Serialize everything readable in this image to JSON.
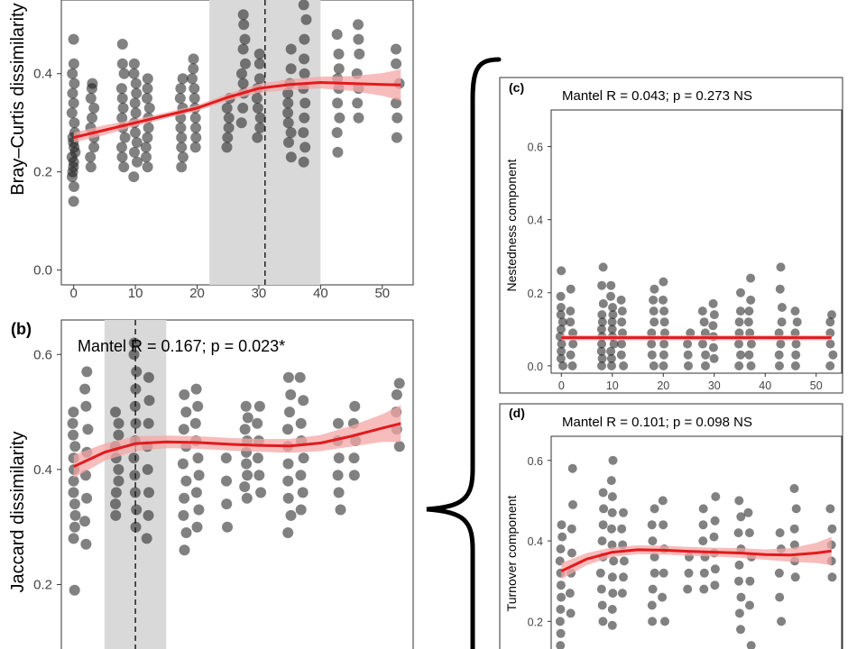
{
  "chart_data": [
    {
      "panel": "a",
      "type": "scatter",
      "annotation": "",
      "ylabel": "Bray–Curtis dissimilarity",
      "xlabel": "",
      "xlim": [
        -2,
        55
      ],
      "ylim": [
        -0.03,
        0.55
      ],
      "xticks": [
        0,
        10,
        20,
        30,
        40,
        50
      ],
      "yticks": [
        0.0,
        0.2,
        0.4
      ],
      "ytick_labels": [
        "0.0",
        "0.2",
        "0.4"
      ],
      "shaded_band": [
        22,
        40
      ],
      "dashed_line_x": 31,
      "grid": false,
      "point_color": "#222222",
      "smooth_color": "#e31a1c",
      "ribbon_color": "#f4a6a6",
      "band_color": "#d9d9d9",
      "smooth": {
        "x": [
          0,
          5,
          10,
          15,
          20,
          25,
          30,
          35,
          40,
          45,
          50,
          53
        ],
        "y": [
          0.27,
          0.285,
          0.3,
          0.315,
          0.33,
          0.352,
          0.37,
          0.378,
          0.382,
          0.38,
          0.378,
          0.377
        ],
        "lower": [
          0.26,
          0.275,
          0.293,
          0.309,
          0.324,
          0.345,
          0.361,
          0.367,
          0.37,
          0.365,
          0.355,
          0.345
        ],
        "upper": [
          0.28,
          0.295,
          0.307,
          0.321,
          0.336,
          0.359,
          0.379,
          0.389,
          0.394,
          0.395,
          0.401,
          0.409
        ]
      },
      "clusters": [
        {
          "x": 0,
          "y": [
            0.14,
            0.17,
            0.19,
            0.2,
            0.21,
            0.22,
            0.23,
            0.24,
            0.25,
            0.26,
            0.27,
            0.28,
            0.3,
            0.32,
            0.34,
            0.36,
            0.38,
            0.4,
            0.42,
            0.47
          ]
        },
        {
          "x": 3,
          "y": [
            0.21,
            0.23,
            0.25,
            0.27,
            0.29,
            0.31,
            0.33,
            0.35,
            0.37,
            0.38
          ]
        },
        {
          "x": 8,
          "y": [
            0.21,
            0.23,
            0.25,
            0.27,
            0.29,
            0.31,
            0.33,
            0.35,
            0.37,
            0.4,
            0.42,
            0.46
          ]
        },
        {
          "x": 10,
          "y": [
            0.19,
            0.22,
            0.24,
            0.26,
            0.28,
            0.3,
            0.32,
            0.34,
            0.36,
            0.38,
            0.4,
            0.42
          ]
        },
        {
          "x": 12,
          "y": [
            0.21,
            0.23,
            0.25,
            0.27,
            0.29,
            0.31,
            0.33,
            0.35,
            0.37,
            0.39
          ]
        },
        {
          "x": 17.5,
          "y": [
            0.21,
            0.23,
            0.25,
            0.27,
            0.29,
            0.31,
            0.33,
            0.35,
            0.37,
            0.39
          ]
        },
        {
          "x": 19.5,
          "y": [
            0.25,
            0.27,
            0.29,
            0.31,
            0.33,
            0.35,
            0.37,
            0.39,
            0.41,
            0.43
          ]
        },
        {
          "x": 25,
          "y": [
            0.25,
            0.27,
            0.29,
            0.31,
            0.33,
            0.35
          ]
        },
        {
          "x": 27.5,
          "y": [
            0.3,
            0.33,
            0.36,
            0.38,
            0.4,
            0.42,
            0.45,
            0.47,
            0.5,
            0.52
          ]
        },
        {
          "x": 30,
          "y": [
            0.27,
            0.29,
            0.31,
            0.33,
            0.35,
            0.37,
            0.39,
            0.42,
            0.44
          ]
        },
        {
          "x": 35,
          "y": [
            0.23,
            0.26,
            0.28,
            0.3,
            0.32,
            0.34,
            0.36,
            0.38,
            0.41,
            0.45
          ]
        },
        {
          "x": 37.5,
          "y": [
            0.22,
            0.25,
            0.28,
            0.31,
            0.34,
            0.37,
            0.4,
            0.43,
            0.47,
            0.51,
            0.54
          ]
        },
        {
          "x": 43,
          "y": [
            0.24,
            0.28,
            0.31,
            0.34,
            0.37,
            0.39,
            0.41,
            0.44,
            0.48
          ]
        },
        {
          "x": 46,
          "y": [
            0.31,
            0.34,
            0.37,
            0.4,
            0.44,
            0.47,
            0.5
          ]
        },
        {
          "x": 52.5,
          "y": [
            0.27,
            0.31,
            0.34,
            0.38,
            0.42,
            0.45
          ]
        }
      ]
    },
    {
      "panel": "b",
      "type": "scatter",
      "label": "(b)",
      "annotation": "Mantel R = 0.167; p = 0.023*",
      "ylabel": "Jaccard dissimilarity",
      "xlabel": "",
      "xlim": [
        -2,
        55
      ],
      "ylim": [
        0.08,
        0.66
      ],
      "yticks": [
        0.2,
        0.4,
        0.6
      ],
      "ytick_labels": [
        "0.2",
        "0.4",
        "0.6"
      ],
      "shaded_band": [
        5,
        15
      ],
      "dashed_line_x": 10,
      "grid": false,
      "smooth": {
        "x": [
          0,
          5,
          10,
          15,
          20,
          25,
          30,
          35,
          40,
          45,
          50,
          53
        ],
        "y": [
          0.405,
          0.43,
          0.445,
          0.448,
          0.447,
          0.444,
          0.442,
          0.441,
          0.446,
          0.458,
          0.472,
          0.48
        ],
        "lower": [
          0.385,
          0.415,
          0.432,
          0.437,
          0.436,
          0.433,
          0.431,
          0.429,
          0.432,
          0.44,
          0.448,
          0.448
        ],
        "upper": [
          0.425,
          0.445,
          0.458,
          0.459,
          0.458,
          0.455,
          0.453,
          0.453,
          0.46,
          0.476,
          0.496,
          0.512
        ]
      },
      "clusters": [
        {
          "x": 0,
          "y": [
            0.19,
            0.28,
            0.3,
            0.32,
            0.34,
            0.36,
            0.38,
            0.4,
            0.42,
            0.44,
            0.46,
            0.48,
            0.5
          ]
        },
        {
          "x": 2,
          "y": [
            0.27,
            0.31,
            0.35,
            0.39,
            0.43,
            0.47,
            0.51,
            0.54,
            0.57
          ]
        },
        {
          "x": 7,
          "y": [
            0.32,
            0.34,
            0.36,
            0.38,
            0.4,
            0.42,
            0.44,
            0.46,
            0.48,
            0.5
          ]
        },
        {
          "x": 10,
          "y": [
            0.3,
            0.33,
            0.36,
            0.39,
            0.42,
            0.45,
            0.48,
            0.51,
            0.54,
            0.57,
            0.6,
            0.62
          ]
        },
        {
          "x": 12,
          "y": [
            0.28,
            0.32,
            0.36,
            0.4,
            0.44,
            0.48,
            0.52,
            0.56
          ]
        },
        {
          "x": 18,
          "y": [
            0.26,
            0.29,
            0.32,
            0.35,
            0.38,
            0.41,
            0.44,
            0.47,
            0.5,
            0.53
          ]
        },
        {
          "x": 20,
          "y": [
            0.3,
            0.33,
            0.36,
            0.39,
            0.42,
            0.45,
            0.48,
            0.51,
            0.54
          ]
        },
        {
          "x": 25,
          "y": [
            0.3,
            0.34,
            0.38,
            0.42
          ]
        },
        {
          "x": 28,
          "y": [
            0.35,
            0.37,
            0.39,
            0.41,
            0.43,
            0.45,
            0.47,
            0.49,
            0.51
          ]
        },
        {
          "x": 30,
          "y": [
            0.36,
            0.39,
            0.42,
            0.45,
            0.48,
            0.51
          ]
        },
        {
          "x": 35,
          "y": [
            0.29,
            0.32,
            0.35,
            0.38,
            0.41,
            0.44,
            0.47,
            0.5,
            0.53,
            0.56
          ]
        },
        {
          "x": 37,
          "y": [
            0.33,
            0.36,
            0.39,
            0.42,
            0.45,
            0.48,
            0.52,
            0.56
          ]
        },
        {
          "x": 43,
          "y": [
            0.33,
            0.36,
            0.39,
            0.42,
            0.45,
            0.48
          ]
        },
        {
          "x": 45.5,
          "y": [
            0.39,
            0.42,
            0.45,
            0.48,
            0.51
          ]
        },
        {
          "x": 52.5,
          "y": [
            0.44,
            0.47,
            0.5,
            0.53,
            0.55
          ]
        }
      ]
    },
    {
      "panel": "c",
      "type": "scatter",
      "label": "(c)",
      "annotation": "Mantel R = 0.043; p = 0.273 NS",
      "ylabel": "Nestedness component",
      "xlabel": "",
      "xlim": [
        -2,
        55
      ],
      "ylim": [
        -0.02,
        0.7
      ],
      "xticks": [
        0,
        10,
        20,
        30,
        40,
        50
      ],
      "yticks": [
        0.0,
        0.2,
        0.4,
        0.6
      ],
      "ytick_labels": [
        "0.0",
        "0.2",
        "0.4",
        "0.6"
      ],
      "grid": false,
      "smooth": {
        "x": [
          0,
          53
        ],
        "y": [
          0.077,
          0.077
        ],
        "lower": [
          0.07,
          0.07
        ],
        "upper": [
          0.084,
          0.084
        ]
      },
      "clusters": [
        {
          "x": 0,
          "y": [
            0.0,
            0.02,
            0.04,
            0.06,
            0.08,
            0.1,
            0.12,
            0.14,
            0.16,
            0.19,
            0.26
          ]
        },
        {
          "x": 2,
          "y": [
            0.0,
            0.03,
            0.06,
            0.09,
            0.12,
            0.15,
            0.21
          ]
        },
        {
          "x": 8,
          "y": [
            0.0,
            0.02,
            0.04,
            0.06,
            0.08,
            0.1,
            0.12,
            0.14,
            0.17,
            0.22,
            0.27
          ]
        },
        {
          "x": 10,
          "y": [
            0.0,
            0.02,
            0.04,
            0.06,
            0.08,
            0.1,
            0.12,
            0.14,
            0.16,
            0.19,
            0.22
          ]
        },
        {
          "x": 12,
          "y": [
            0.0,
            0.03,
            0.06,
            0.09,
            0.12,
            0.15,
            0.18
          ]
        },
        {
          "x": 18,
          "y": [
            0.0,
            0.03,
            0.06,
            0.09,
            0.12,
            0.15,
            0.18,
            0.21
          ]
        },
        {
          "x": 20,
          "y": [
            0.0,
            0.03,
            0.06,
            0.09,
            0.12,
            0.15,
            0.18,
            0.23
          ]
        },
        {
          "x": 25,
          "y": [
            0.0,
            0.03,
            0.06,
            0.09
          ]
        },
        {
          "x": 28,
          "y": [
            0.0,
            0.03,
            0.06,
            0.09,
            0.12,
            0.15
          ]
        },
        {
          "x": 30,
          "y": [
            0.02,
            0.05,
            0.08,
            0.11,
            0.14,
            0.17
          ]
        },
        {
          "x": 35,
          "y": [
            0.0,
            0.03,
            0.06,
            0.09,
            0.12,
            0.15,
            0.2
          ]
        },
        {
          "x": 37,
          "y": [
            0.0,
            0.03,
            0.06,
            0.09,
            0.12,
            0.15,
            0.18,
            0.24
          ]
        },
        {
          "x": 43,
          "y": [
            0.0,
            0.03,
            0.06,
            0.09,
            0.12,
            0.16,
            0.21,
            0.27
          ]
        },
        {
          "x": 46,
          "y": [
            0.0,
            0.03,
            0.06,
            0.09,
            0.12,
            0.15
          ]
        },
        {
          "x": 53,
          "y": [
            0.0,
            0.03,
            0.06,
            0.09,
            0.12,
            0.14
          ]
        }
      ]
    },
    {
      "panel": "d",
      "type": "scatter",
      "label": "(d)",
      "annotation": "Mantel R = 0.101; p = 0.098 NS",
      "ylabel": "Turnover component",
      "xlabel": "",
      "xlim": [
        -2,
        55
      ],
      "ylim": [
        0.1,
        0.66
      ],
      "yticks": [
        0.2,
        0.4,
        0.6
      ],
      "ytick_labels": [
        "0.2",
        "0.4",
        "0.6"
      ],
      "grid": false,
      "smooth": {
        "x": [
          0,
          5,
          10,
          15,
          20,
          25,
          30,
          35,
          40,
          45,
          50,
          53
        ],
        "y": [
          0.325,
          0.355,
          0.372,
          0.378,
          0.377,
          0.374,
          0.372,
          0.37,
          0.366,
          0.365,
          0.37,
          0.375
        ],
        "lower": [
          0.305,
          0.34,
          0.36,
          0.367,
          0.366,
          0.363,
          0.361,
          0.358,
          0.353,
          0.348,
          0.345,
          0.34
        ],
        "upper": [
          0.345,
          0.37,
          0.384,
          0.389,
          0.388,
          0.385,
          0.383,
          0.382,
          0.379,
          0.382,
          0.395,
          0.41
        ]
      },
      "clusters": [
        {
          "x": 0,
          "y": [
            0.14,
            0.17,
            0.2,
            0.23,
            0.26,
            0.29,
            0.32,
            0.35,
            0.38,
            0.41,
            0.44
          ]
        },
        {
          "x": 2,
          "y": [
            0.22,
            0.27,
            0.32,
            0.37,
            0.43,
            0.49,
            0.58
          ]
        },
        {
          "x": 8,
          "y": [
            0.2,
            0.24,
            0.28,
            0.32,
            0.36,
            0.4,
            0.44,
            0.48,
            0.52
          ]
        },
        {
          "x": 10,
          "y": [
            0.19,
            0.23,
            0.27,
            0.31,
            0.35,
            0.39,
            0.43,
            0.47,
            0.51,
            0.55,
            0.6
          ]
        },
        {
          "x": 12,
          "y": [
            0.27,
            0.31,
            0.35,
            0.39,
            0.43,
            0.47
          ]
        },
        {
          "x": 18,
          "y": [
            0.2,
            0.24,
            0.28,
            0.32,
            0.36,
            0.4,
            0.44,
            0.48
          ]
        },
        {
          "x": 20,
          "y": [
            0.2,
            0.26,
            0.32,
            0.38,
            0.44,
            0.5
          ]
        },
        {
          "x": 25,
          "y": [
            0.28,
            0.32,
            0.36
          ]
        },
        {
          "x": 28,
          "y": [
            0.28,
            0.32,
            0.36,
            0.4,
            0.44,
            0.48
          ]
        },
        {
          "x": 30,
          "y": [
            0.29,
            0.33,
            0.37,
            0.41,
            0.45,
            0.51
          ]
        },
        {
          "x": 35,
          "y": [
            0.18,
            0.22,
            0.26,
            0.3,
            0.34,
            0.38,
            0.42,
            0.46,
            0.5
          ]
        },
        {
          "x": 37,
          "y": [
            0.14,
            0.24,
            0.3,
            0.36,
            0.42,
            0.47
          ]
        },
        {
          "x": 43,
          "y": [
            0.2,
            0.26,
            0.32,
            0.38,
            0.42
          ]
        },
        {
          "x": 46,
          "y": [
            0.31,
            0.35,
            0.39,
            0.43,
            0.48,
            0.53
          ]
        },
        {
          "x": 53,
          "y": [
            0.31,
            0.35,
            0.39,
            0.43,
            0.48
          ]
        }
      ]
    }
  ]
}
